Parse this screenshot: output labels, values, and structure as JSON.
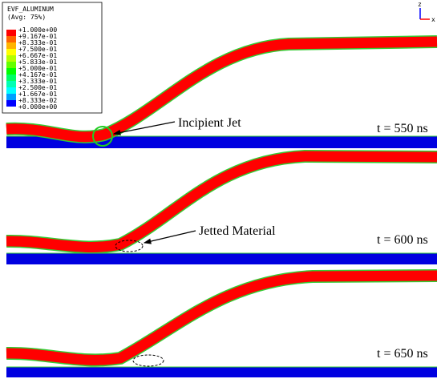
{
  "legend": {
    "title": "EVF_ALUMINUM",
    "subtitle": "(Avg: 75%)",
    "labels": [
      "+1.000e+00",
      "+9.167e-01",
      "+8.333e-01",
      "+7.500e-01",
      "+6.667e-01",
      "+5.833e-01",
      "+5.000e-01",
      "+4.167e-01",
      "+3.333e-01",
      "+2.500e-01",
      "+1.667e-01",
      "+8.333e-02",
      "+0.000e+00"
    ],
    "colors": [
      "#ff0000",
      "#ff6400",
      "#ffb400",
      "#ffff00",
      "#b4ff00",
      "#64ff00",
      "#00ff00",
      "#00ff64",
      "#00ffb4",
      "#00ffff",
      "#00a0ff",
      "#0000ff"
    ]
  },
  "annotations": {
    "incipient_jet": "Incipient Jet",
    "jetted_material": "Jetted Material"
  },
  "panels": [
    {
      "time": "t = 550 ns"
    },
    {
      "time": "t = 600 ns"
    },
    {
      "time": "t = 650 ns"
    }
  ],
  "triad": {
    "z": "z",
    "x": "x"
  }
}
